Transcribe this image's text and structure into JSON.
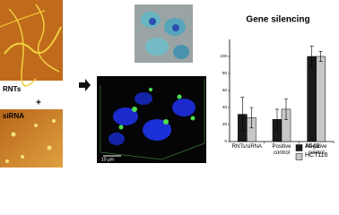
{
  "labels": {
    "top_image": "RNTs",
    "plus": "+",
    "bottom_image": "siRNA",
    "scale_bar": "10 µm"
  },
  "chart_data": {
    "type": "bar",
    "title": "Gene silencing",
    "categories": [
      "RNTs/siRNA",
      "Positive control",
      "Negative control"
    ],
    "series": [
      {
        "name": "A549",
        "color": "#1a1a1a",
        "values": [
          32,
          26,
          100
        ],
        "errors": [
          20,
          12,
          12
        ]
      },
      {
        "name": "HCT116",
        "color": "#c8c8c8",
        "values": [
          28,
          38,
          100
        ],
        "errors": [
          12,
          12,
          6
        ]
      }
    ],
    "ylim": [
      0,
      120
    ],
    "yticks": [
      0,
      20,
      40,
      60,
      80,
      100
    ],
    "legend": "lower right"
  }
}
